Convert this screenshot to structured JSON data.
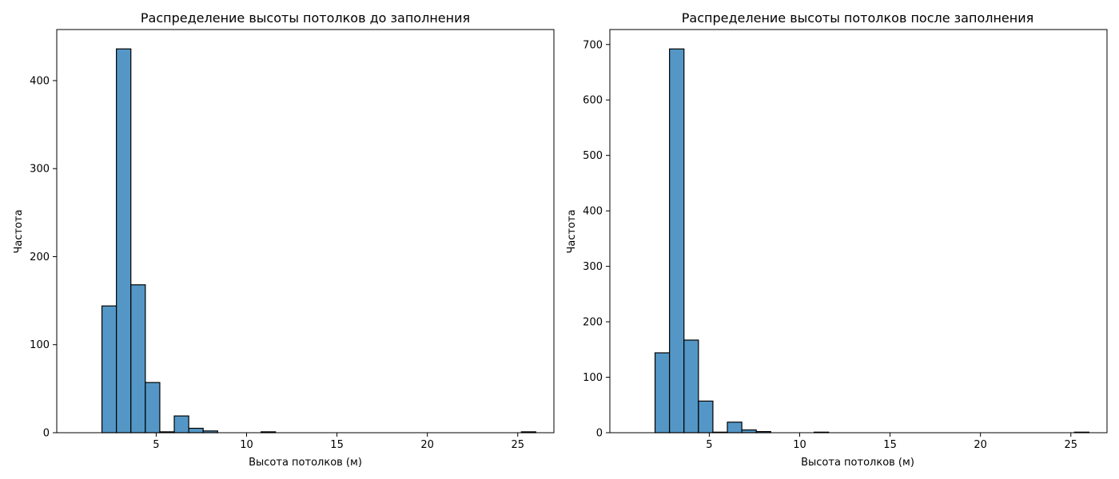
{
  "chart_data": [
    {
      "type": "bar",
      "title": "Распределение высоты потолков до заполнения",
      "xlabel": "Высота потолков (м)",
      "ylabel": "Частота",
      "bin_edges": [
        2.0,
        2.8,
        3.6,
        4.4,
        5.2,
        6.0,
        6.8,
        7.6,
        8.4,
        9.2,
        10.0,
        10.8,
        11.6,
        12.4,
        13.2,
        14.0,
        14.8,
        15.6,
        16.4,
        17.2,
        18.0,
        18.8,
        19.6,
        20.4,
        21.2,
        22.0,
        22.8,
        23.6,
        24.4,
        25.2,
        26.0
      ],
      "values": [
        144,
        436,
        168,
        57,
        1,
        19,
        5,
        2,
        0,
        0,
        0,
        1,
        0,
        0,
        0,
        0,
        0,
        0,
        0,
        0,
        0,
        0,
        0,
        0,
        0,
        0,
        0,
        0,
        0,
        1
      ],
      "xlim": [
        -0.5,
        27.0
      ],
      "ylim": [
        0,
        458
      ],
      "xticks": [
        5,
        10,
        15,
        20,
        25
      ],
      "yticks": [
        0,
        100,
        200,
        300,
        400
      ],
      "grid": false,
      "bar_color": "#5497c6",
      "edge_color": "#000000"
    },
    {
      "type": "bar",
      "title": "Распределение высоты потолков после заполнения",
      "xlabel": "Высота потолков (м)",
      "ylabel": "Частота",
      "bin_edges": [
        2.0,
        2.8,
        3.6,
        4.4,
        5.2,
        6.0,
        6.8,
        7.6,
        8.4,
        9.2,
        10.0,
        10.8,
        11.6,
        12.4,
        13.2,
        14.0,
        14.8,
        15.6,
        16.4,
        17.2,
        18.0,
        18.8,
        19.6,
        20.4,
        21.2,
        22.0,
        22.8,
        23.6,
        24.4,
        25.2,
        26.0
      ],
      "values": [
        144,
        692,
        167,
        57,
        1,
        19,
        5,
        2,
        0,
        0,
        0,
        1,
        0,
        0,
        0,
        0,
        0,
        0,
        0,
        0,
        0,
        0,
        0,
        0,
        0,
        0,
        0,
        0,
        0,
        1
      ],
      "xlim": [
        -0.5,
        27.0
      ],
      "ylim": [
        0,
        727
      ],
      "xticks": [
        5,
        10,
        15,
        20,
        25
      ],
      "yticks": [
        0,
        100,
        200,
        300,
        400,
        500,
        600,
        700
      ],
      "grid": false,
      "bar_color": "#5497c6",
      "edge_color": "#000000"
    }
  ]
}
